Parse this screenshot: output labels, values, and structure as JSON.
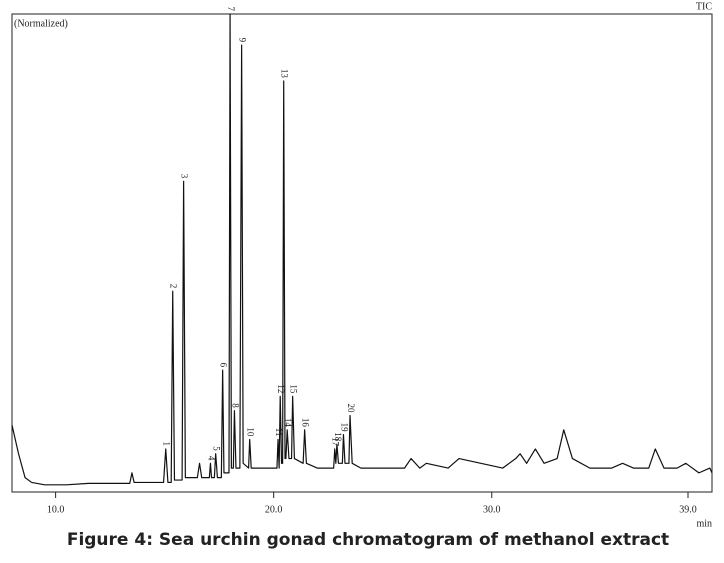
{
  "chart_data": {
    "type": "line",
    "title": "Figure 4: Sea urchin gonad chromatogram of methanol extract",
    "y_label": "(Normalized)",
    "series_label": "TIC",
    "x_label": "min",
    "color": "#111111",
    "xlim": [
      8.0,
      40.1
    ],
    "ylim": [
      0,
      100
    ],
    "xticks": [
      {
        "value": 10,
        "label": "10.0"
      },
      {
        "value": 20,
        "label": "20.0"
      },
      {
        "value": 30,
        "label": "30.0"
      },
      {
        "value": 39,
        "label": "39.0"
      }
    ],
    "x": [
      8.0,
      8.3,
      8.6,
      8.9,
      9.5,
      10.5,
      11.5,
      12.5,
      13.4,
      13.5,
      13.6,
      14.5,
      14.95,
      15.05,
      15.15,
      15.3,
      15.37,
      15.45,
      15.8,
      15.87,
      15.95,
      16.5,
      16.6,
      16.7,
      17.05,
      17.1,
      17.15,
      17.28,
      17.34,
      17.42,
      17.6,
      17.66,
      17.72,
      17.95,
      18.0,
      18.06,
      18.15,
      18.2,
      18.27,
      18.45,
      18.53,
      18.6,
      18.85,
      18.9,
      18.97,
      19.5,
      20.15,
      20.2,
      20.25,
      20.3,
      20.36,
      20.41,
      20.46,
      20.52,
      20.56,
      20.62,
      20.7,
      20.82,
      20.87,
      20.95,
      21.35,
      21.42,
      21.5,
      22.0,
      22.75,
      22.8,
      22.85,
      22.9,
      22.97,
      23.15,
      23.2,
      23.27,
      23.45,
      23.5,
      23.6,
      24.0,
      25.0,
      26.0,
      26.3,
      26.7,
      27.0,
      28.0,
      28.5,
      29.5,
      30.5,
      31.1,
      31.3,
      31.6,
      32.0,
      32.4,
      33.0,
      33.3,
      33.7,
      34.5,
      35.5,
      36.0,
      36.5,
      37.2,
      37.5,
      37.9,
      38.5,
      38.9,
      39.5,
      40.0,
      40.1
    ],
    "values": [
      14,
      8,
      3,
      2,
      1.5,
      1.5,
      1.8,
      1.8,
      1.8,
      4,
      2,
      2,
      2,
      9,
      2,
      2,
      42,
      2.5,
      2.5,
      65,
      3,
      3,
      6,
      3,
      3,
      6,
      3,
      3,
      8,
      3,
      3,
      25.5,
      4,
      4,
      100,
      5,
      5,
      17,
      5,
      5,
      93.5,
      6,
      5,
      11,
      5,
      5,
      5,
      11,
      5,
      20,
      6,
      6,
      86,
      7,
      7,
      13,
      7,
      7,
      20,
      7,
      6,
      13,
      6,
      5,
      5,
      9,
      6,
      10,
      6,
      6,
      12,
      6,
      6,
      16,
      6,
      5,
      5,
      5,
      7,
      5,
      6,
      5,
      7,
      6,
      5,
      7,
      8,
      6,
      9,
      6,
      7,
      13,
      7,
      5,
      5,
      6,
      5,
      5,
      9,
      5,
      5,
      6,
      4,
      5,
      4
    ],
    "annotations": [
      {
        "text": "1",
        "x": 15.05,
        "y": 9
      },
      {
        "text": "2",
        "x": 15.37,
        "y": 42
      },
      {
        "text": "3",
        "x": 15.87,
        "y": 65
      },
      {
        "text": "4",
        "x": 17.1,
        "y": 6
      },
      {
        "text": "5",
        "x": 17.34,
        "y": 8
      },
      {
        "text": "6",
        "x": 17.66,
        "y": 25.5
      },
      {
        "text": "7",
        "x": 18.0,
        "y": 100
      },
      {
        "text": "8",
        "x": 18.2,
        "y": 17
      },
      {
        "text": "9",
        "x": 18.53,
        "y": 93.5
      },
      {
        "text": "10",
        "x": 18.9,
        "y": 11
      },
      {
        "text": "11",
        "x": 20.2,
        "y": 11
      },
      {
        "text": "12",
        "x": 20.3,
        "y": 20
      },
      {
        "text": "13",
        "x": 20.46,
        "y": 86
      },
      {
        "text": "14",
        "x": 20.62,
        "y": 13
      },
      {
        "text": "15",
        "x": 20.87,
        "y": 20
      },
      {
        "text": "16",
        "x": 21.42,
        "y": 13
      },
      {
        "text": "17",
        "x": 22.8,
        "y": 9
      },
      {
        "text": "18",
        "x": 22.9,
        "y": 10
      },
      {
        "text": "19",
        "x": 23.2,
        "y": 12
      },
      {
        "text": "20",
        "x": 23.5,
        "y": 16
      }
    ]
  }
}
